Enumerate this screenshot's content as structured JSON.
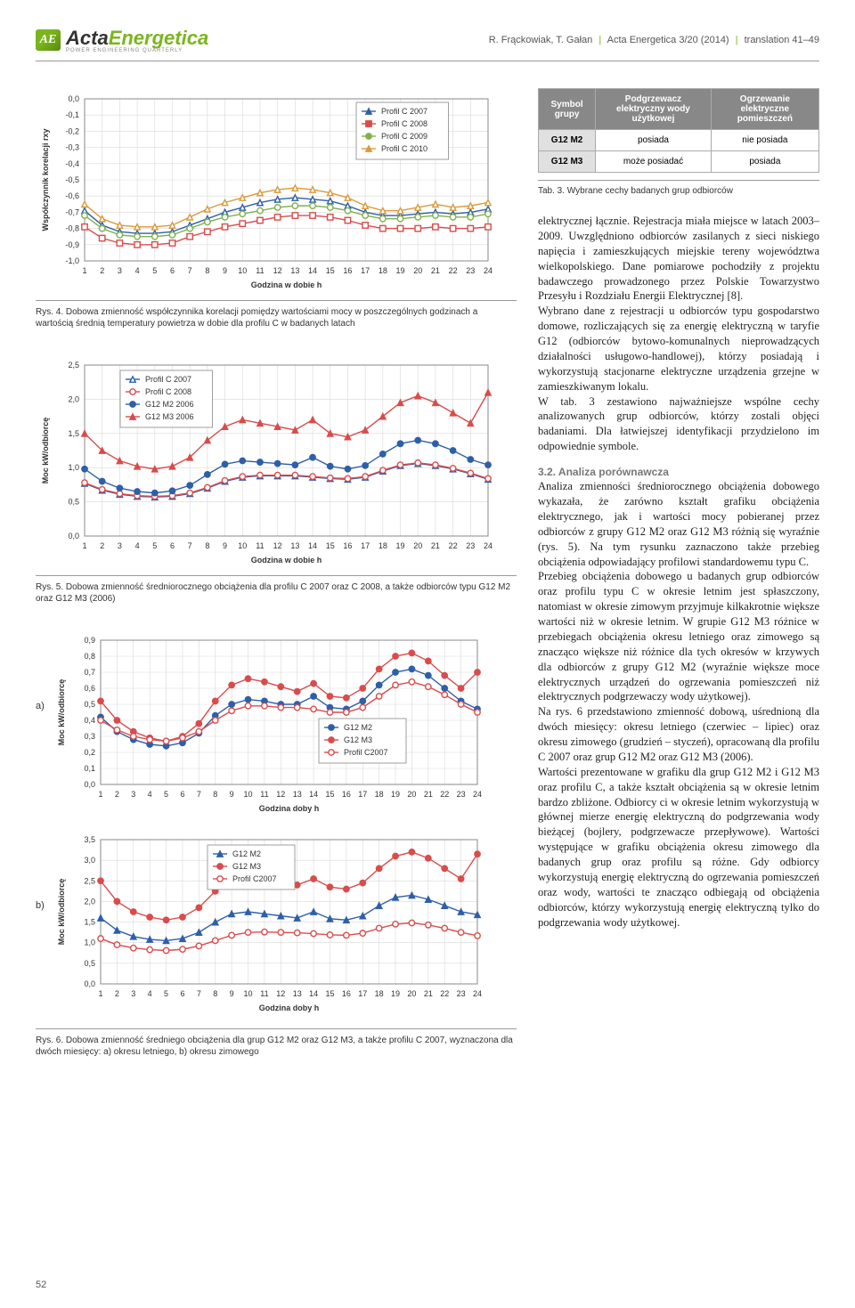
{
  "header": {
    "logo_acta": "Acta",
    "logo_energ": "Energetica",
    "logo_sub": "POWER ENGINEERING QUARTERLY",
    "citation": "R. Frąckowiak, T. Gałan",
    "journal": "Acta Energetica 3/20 (2014)",
    "pages": "translation 41–49"
  },
  "chart1": {
    "ylabel": "Współczynnik korelacji  rxy",
    "xlabel": "Godzina w dobie  h",
    "xmin": 1,
    "xmax": 24,
    "ymin": -1.0,
    "ymax": 0.0,
    "ytick_step": 0.1,
    "gridcolor": "#d9d9d9",
    "bg": "#ffffff",
    "legend": [
      {
        "label": "Profil C 2007",
        "marker": "triangle",
        "color": "#2e5fa8"
      },
      {
        "label": "Profil C 2008",
        "marker": "square",
        "color": "#d94c4c"
      },
      {
        "label": "Profil C 2009",
        "marker": "circle",
        "color": "#7fb24c"
      },
      {
        "label": "Profil C 2010",
        "marker": "triangle",
        "color": "#d99a3a"
      }
    ],
    "series": {
      "c2007": [
        -0.69,
        -0.78,
        -0.82,
        -0.83,
        -0.83,
        -0.82,
        -0.78,
        -0.74,
        -0.7,
        -0.67,
        -0.64,
        -0.62,
        -0.61,
        -0.62,
        -0.63,
        -0.66,
        -0.7,
        -0.72,
        -0.72,
        -0.71,
        -0.7,
        -0.71,
        -0.7,
        -0.68
      ],
      "c2008": [
        -0.79,
        -0.86,
        -0.89,
        -0.9,
        -0.9,
        -0.89,
        -0.85,
        -0.82,
        -0.79,
        -0.77,
        -0.75,
        -0.73,
        -0.72,
        -0.72,
        -0.73,
        -0.75,
        -0.78,
        -0.8,
        -0.8,
        -0.8,
        -0.79,
        -0.8,
        -0.8,
        -0.79
      ],
      "c2009": [
        -0.72,
        -0.8,
        -0.84,
        -0.85,
        -0.85,
        -0.84,
        -0.8,
        -0.76,
        -0.73,
        -0.71,
        -0.69,
        -0.67,
        -0.66,
        -0.66,
        -0.67,
        -0.69,
        -0.72,
        -0.74,
        -0.74,
        -0.73,
        -0.72,
        -0.73,
        -0.73,
        -0.71
      ],
      "c2010": [
        -0.65,
        -0.74,
        -0.78,
        -0.79,
        -0.79,
        -0.78,
        -0.73,
        -0.68,
        -0.64,
        -0.61,
        -0.58,
        -0.56,
        -0.55,
        -0.56,
        -0.58,
        -0.61,
        -0.66,
        -0.69,
        -0.69,
        -0.67,
        -0.65,
        -0.67,
        -0.66,
        -0.64
      ]
    },
    "colors": {
      "c2007": "#2e5fa8",
      "c2008": "#d94c4c",
      "c2009": "#7fb24c",
      "c2010": "#d99a3a"
    }
  },
  "caption1": "Rys. 4. Dobowa zmienność współczynnika korelacji pomiędzy wartościami mocy w poszczególnych godzinach a wartością średnią temperatury powietrza w dobie dla profilu C w badanych latach",
  "chart2": {
    "ylabel": "Moc  kW/odbiorcę",
    "xlabel": "Godzina w dobie  h",
    "xmin": 1,
    "xmax": 24,
    "ymin": 0.0,
    "ymax": 2.5,
    "ytick_step": 0.5,
    "gridcolor": "#d9d9d9",
    "legend": [
      {
        "label": "Profil C 2007",
        "marker": "triangle-open",
        "color": "#2e5fa8"
      },
      {
        "label": "Profil C 2008",
        "marker": "circle-open",
        "color": "#d94c4c"
      },
      {
        "label": "G12 M2 2006",
        "marker": "circle",
        "color": "#2e5fa8"
      },
      {
        "label": "G12 M3 2006",
        "marker": "triangle",
        "color": "#d94c4c"
      }
    ],
    "series": {
      "pc2007": [
        0.77,
        0.67,
        0.61,
        0.58,
        0.57,
        0.58,
        0.62,
        0.7,
        0.8,
        0.86,
        0.88,
        0.88,
        0.88,
        0.86,
        0.84,
        0.83,
        0.86,
        0.95,
        1.03,
        1.06,
        1.03,
        0.98,
        0.91,
        0.83
      ],
      "pc2008": [
        0.78,
        0.68,
        0.62,
        0.59,
        0.58,
        0.59,
        0.63,
        0.71,
        0.81,
        0.87,
        0.89,
        0.89,
        0.89,
        0.87,
        0.85,
        0.84,
        0.87,
        0.96,
        1.04,
        1.07,
        1.04,
        0.99,
        0.92,
        0.84
      ],
      "g12m2": [
        0.98,
        0.8,
        0.7,
        0.65,
        0.63,
        0.66,
        0.74,
        0.9,
        1.05,
        1.1,
        1.08,
        1.06,
        1.04,
        1.15,
        1.02,
        0.98,
        1.03,
        1.2,
        1.35,
        1.4,
        1.35,
        1.25,
        1.12,
        1.04
      ],
      "g12m3": [
        1.5,
        1.25,
        1.1,
        1.02,
        0.98,
        1.02,
        1.15,
        1.4,
        1.6,
        1.7,
        1.65,
        1.6,
        1.55,
        1.7,
        1.5,
        1.45,
        1.55,
        1.75,
        1.95,
        2.05,
        1.95,
        1.8,
        1.65,
        2.1
      ]
    },
    "colors": {
      "pc2007": "#2e5fa8",
      "pc2008": "#d94c4c",
      "g12m2": "#2e5fa8",
      "g12m3": "#d94c4c"
    }
  },
  "caption2": "Rys. 5. Dobowa zmienność średniorocznego obciążenia dla profilu C 2007 oraz C 2008, a także odbiorców typu G12 M2 oraz G12 M3 (2006)",
  "chart3a": {
    "ylabel": "Moc  kW/odbiorcę",
    "xlabel": "Godzina doby  h",
    "xmin": 1,
    "xmax": 24,
    "ymin": 0.0,
    "ymax": 0.9,
    "ytick_step": 0.1,
    "gridcolor": "#d9d9d9",
    "legend": [
      {
        "label": "G12 M2",
        "marker": "circle",
        "color": "#2e5fa8"
      },
      {
        "label": "G12 M3",
        "marker": "circle",
        "color": "#d94c4c"
      },
      {
        "label": "Profil C2007",
        "marker": "circle-open",
        "color": "#d94c4c"
      }
    ],
    "series": {
      "g12m2": [
        0.42,
        0.33,
        0.28,
        0.25,
        0.24,
        0.26,
        0.32,
        0.43,
        0.5,
        0.53,
        0.52,
        0.5,
        0.5,
        0.55,
        0.48,
        0.47,
        0.52,
        0.62,
        0.7,
        0.72,
        0.68,
        0.6,
        0.52,
        0.47
      ],
      "g12m3": [
        0.52,
        0.4,
        0.33,
        0.29,
        0.27,
        0.3,
        0.38,
        0.52,
        0.62,
        0.66,
        0.64,
        0.61,
        0.58,
        0.63,
        0.55,
        0.54,
        0.6,
        0.72,
        0.8,
        0.82,
        0.77,
        0.68,
        0.6,
        0.7
      ],
      "pc": [
        0.4,
        0.34,
        0.3,
        0.28,
        0.27,
        0.29,
        0.33,
        0.4,
        0.46,
        0.49,
        0.49,
        0.48,
        0.48,
        0.47,
        0.45,
        0.45,
        0.48,
        0.55,
        0.62,
        0.64,
        0.61,
        0.56,
        0.5,
        0.45
      ]
    },
    "colors": {
      "g12m2": "#2e5fa8",
      "g12m3": "#d94c4c",
      "pc": "#d94c4c"
    }
  },
  "chart3b": {
    "ylabel": "Moc  kW/odbiorcę",
    "xlabel": "Godzina doby  h",
    "xmin": 1,
    "xmax": 24,
    "ymin": 0.0,
    "ymax": 3.5,
    "ytick_step": 0.5,
    "gridcolor": "#d9d9d9",
    "legend": [
      {
        "label": "G12 M2",
        "marker": "triangle",
        "color": "#2e5fa8"
      },
      {
        "label": "G12 M3",
        "marker": "circle",
        "color": "#d94c4c"
      },
      {
        "label": "Profil C2007",
        "marker": "circle-open",
        "color": "#d94c4c"
      }
    ],
    "series": {
      "g12m2": [
        1.6,
        1.3,
        1.15,
        1.08,
        1.05,
        1.1,
        1.25,
        1.5,
        1.7,
        1.75,
        1.7,
        1.65,
        1.6,
        1.75,
        1.58,
        1.55,
        1.65,
        1.9,
        2.1,
        2.15,
        2.05,
        1.9,
        1.75,
        1.68
      ],
      "g12m3": [
        2.5,
        2.0,
        1.75,
        1.62,
        1.55,
        1.62,
        1.85,
        2.25,
        2.6,
        2.7,
        2.6,
        2.5,
        2.4,
        2.55,
        2.35,
        2.3,
        2.45,
        2.8,
        3.1,
        3.2,
        3.05,
        2.8,
        2.55,
        3.15
      ],
      "pc": [
        1.1,
        0.95,
        0.87,
        0.83,
        0.81,
        0.84,
        0.92,
        1.05,
        1.18,
        1.25,
        1.26,
        1.25,
        1.24,
        1.22,
        1.19,
        1.18,
        1.23,
        1.35,
        1.45,
        1.48,
        1.43,
        1.35,
        1.25,
        1.17
      ]
    },
    "colors": {
      "g12m2": "#2e5fa8",
      "g12m3": "#d94c4c",
      "pc": "#d94c4c"
    }
  },
  "caption3": "Rys. 6. Dobowa zmienność średniego obciążenia dla grup G12 M2 oraz G12 M3, a także profilu C 2007, wyznaczona dla dwóch miesięcy: a) okresu letniego, b) okresu zimowego",
  "table": {
    "headers": [
      "Symbol grupy",
      "Podgrzewacz elektryczny wody użytkowej",
      "Ogrzewanie elektryczne pomieszczeń"
    ],
    "rows": [
      [
        "G12 M2",
        "posiada",
        "nie posiada"
      ],
      [
        "G12 M3",
        "może posiadać",
        "posiada"
      ]
    ]
  },
  "table_caption": "Tab. 3. Wybrane cechy badanych grup odbiorców",
  "body": {
    "p1": "elektrycznej łącznie. Rejestracja miała miejsce w latach 2003–2009. Uwzględniono odbiorców zasilanych z sieci niskiego napięcia i zamieszkujących miejskie tereny województwa wielkopolskiego. Dane pomiarowe pochodziły z projektu badawczego prowadzonego przez Polskie Towarzystwo Przesyłu i Rozdziału Energii Elektrycznej [8].",
    "p2": "Wybrano dane z rejestracji u odbiorców typu gospodarstwo domowe, rozliczających się za energię elektryczną w taryfie G12 (odbiorców bytowo-komunalnych nieprowadzących działalności usługowo-handlowej), którzy posiadają i wykorzystują stacjonarne elektryczne urządzenia grzejne w zamieszkiwanym lokalu.",
    "p3": "W tab. 3 zestawiono najważniejsze wspólne cechy analizowanych grup odbiorców, którzy zostali objęci badaniami. Dla łatwiejszej identyfikacji przydzielono im odpowiednie symbole.",
    "sec32": "3.2. Analiza porównawcza",
    "p4": "Analiza zmienności średniorocznego obciążenia dobowego wykazała, że zarówno kształt grafiku obciążenia elektrycznego, jak i wartości mocy pobieranej przez odbiorców z grupy G12 M2 oraz G12 M3 różnią się wyraźnie (rys. 5). Na tym rysunku zaznaczono także przebieg obciążenia odpowiadający profilowi standardowemu typu C.",
    "p5": "Przebieg obciążenia dobowego u badanych grup odbiorców oraz profilu typu C w okresie letnim jest spłaszczony, natomiast w okresie zimowym przyjmuje kilkakrotnie większe wartości niż w okresie letnim. W grupie G12 M3 różnice w przebiegach obciążenia okresu letniego oraz zimowego są znacząco większe niż różnice dla tych okresów w krzywych dla odbiorców z grupy G12 M2 (wyraźnie większe moce elektrycznych urządzeń do ogrzewania pomieszczeń niż elektrycznych podgrzewaczy wody użytkowej).",
    "p6": "Na rys. 6 przedstawiono zmienność dobową, uśrednioną dla dwóch miesięcy: okresu letniego (czerwiec – lipiec) oraz okresu zimowego (grudzień – styczeń), opracowaną dla profilu C 2007 oraz grup G12 M2 oraz G12 M3 (2006).",
    "p7": "Wartości prezentowane w grafiku dla grup G12 M2 i G12 M3 oraz profilu C, a także kształt obciążenia są w okresie letnim bardzo zbliżone. Odbiorcy ci w okresie letnim wykorzystują w głównej mierze energię elektryczną do podgrzewania wody bieżącej (bojlery, podgrzewacze przepływowe). Wartości występujące w grafiku obciążenia okresu zimowego dla badanych grup oraz profilu są różne. Gdy odbiorcy wykorzystują energię elektryczną do ogrzewania pomieszczeń oraz wody, wartości te znacząco odbiegają od obciążenia odbiorców, którzy wykorzystują energię elektryczną tylko do podgrzewania wody użytkowej."
  },
  "label_a": "a)",
  "label_b": "b)",
  "pagenum": "52"
}
